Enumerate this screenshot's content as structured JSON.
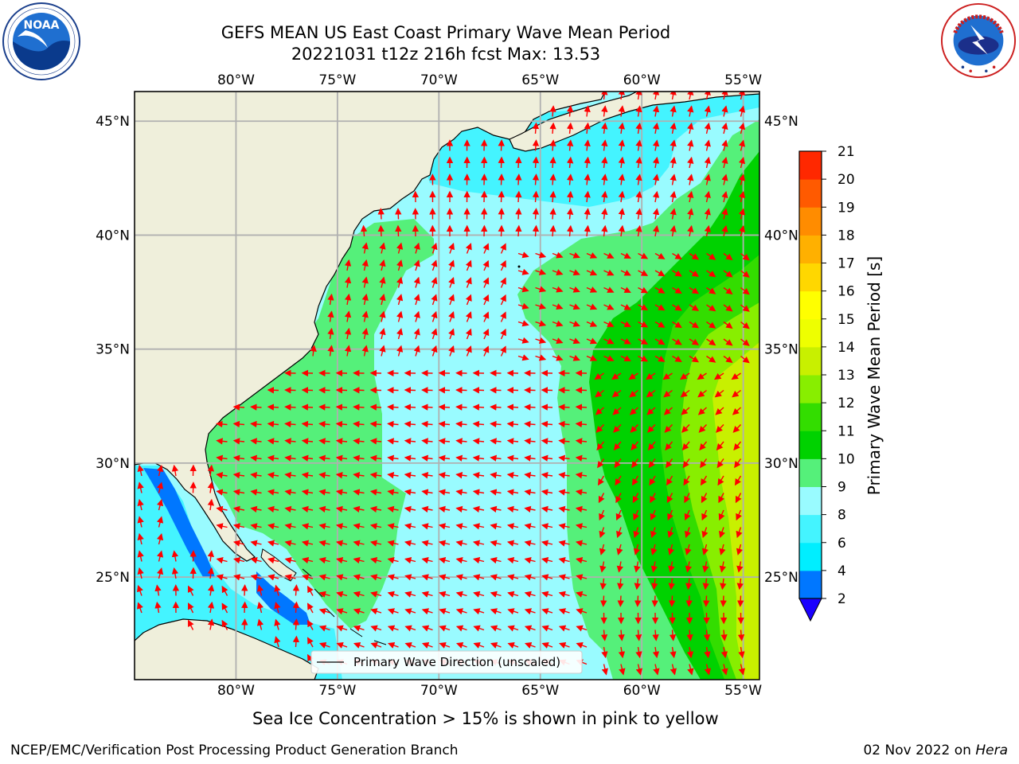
{
  "header": {
    "title_line1": "GEFS MEAN US East Coast Primary Wave Mean Period",
    "title_line2": "20221031 t12z 216h fcst   Max: 13.53"
  },
  "logos": {
    "left": {
      "name": "noaa-logo",
      "text": "NOAA",
      "ring": "NATIONAL OCEANIC AND ATMOSPHERIC ADMINISTRATION · U.S. DEPARTMENT OF COMMERCE"
    },
    "right": {
      "name": "nws-logo",
      "ring": "NATIONAL WEATHER SERVICE"
    }
  },
  "map": {
    "lon_ticks": [
      "80°W",
      "75°W",
      "70°W",
      "65°W",
      "60°W",
      "55°W"
    ],
    "lat_ticks": [
      "45°N",
      "40°N",
      "35°N",
      "30°N",
      "25°N"
    ],
    "lon_values": [
      -80,
      -75,
      -70,
      -65,
      -60,
      -55
    ],
    "lat_values": [
      45,
      40,
      35,
      30,
      25
    ],
    "extent": {
      "lon_min": -85,
      "lon_max": -54.2,
      "lat_min": 20.5,
      "lat_max": 46.3
    },
    "legend_label": "Primary Wave Direction (unscaled)",
    "arrow_color": "#ff0000",
    "land_color": "#efefdb",
    "grid_color": "#b0b0b0"
  },
  "colorbar": {
    "label": "Primary Wave Mean Period [s]",
    "ticks": [
      "2",
      "4",
      "6",
      "8",
      "9",
      "10",
      "11",
      "12",
      "13",
      "14",
      "15",
      "16",
      "17",
      "18",
      "19",
      "20",
      "21"
    ],
    "colors": [
      "#0077ff",
      "#00eeff",
      "#44f4ff",
      "#99fbff",
      "#55f07a",
      "#00d200",
      "#33dd00",
      "#88ee00",
      "#c8f000",
      "#eeff00",
      "#ffff00",
      "#ffd700",
      "#ffb000",
      "#ff8c00",
      "#ff5a00",
      "#ff2800"
    ],
    "under_color": "#1a00ff"
  },
  "caption": "Sea Ice Concentration > 15% is shown in pink to yellow",
  "footer": {
    "left": "NCEP/EMC/Verification Post Processing Product Generation Branch",
    "right_date": "02 Nov 2022 on ",
    "right_host": "Hera"
  }
}
